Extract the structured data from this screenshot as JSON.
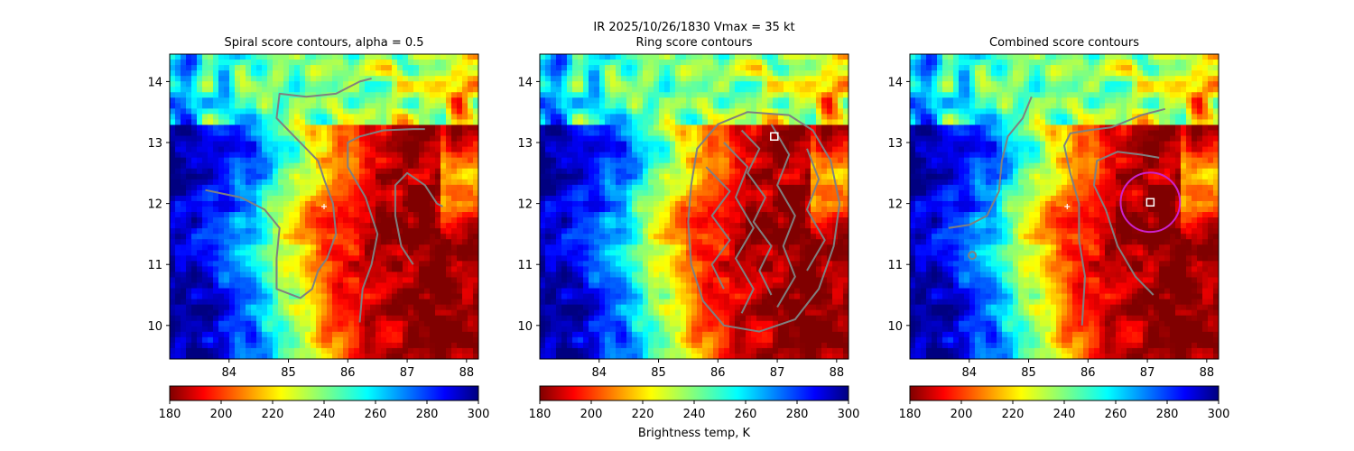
{
  "suptitle": {
    "line1": "IR  2025/10/26/1830    Vmax = 35 kt",
    "line2": "Ring score contours"
  },
  "colorbar_label": "Brightness temp, K",
  "panels": [
    {
      "title": "Spiral score contours, alpha =  0.5"
    },
    {
      "title": ""
    },
    {
      "title": "Combined score contours"
    }
  ],
  "chart_data": {
    "type": "heatmap",
    "colormap": "jet",
    "x": {
      "ticks": [
        84,
        85,
        86,
        87,
        88
      ],
      "range": [
        83.0,
        88.2
      ]
    },
    "y": {
      "ticks": [
        10,
        11,
        12,
        13,
        14
      ],
      "range": [
        9.45,
        14.45
      ]
    },
    "colorbar": {
      "ticks": [
        180,
        200,
        220,
        240,
        260,
        280,
        300
      ],
      "range": [
        180,
        300
      ],
      "label": "Brightness temp, K"
    },
    "contour_color": "#808080",
    "panels": [
      {
        "name": "Spiral score contours, alpha =  0.5",
        "contours": [
          [
            [
              83.6,
              12.22
            ],
            [
              84.2,
              12.1
            ],
            [
              84.6,
              11.9
            ],
            [
              84.85,
              11.6
            ],
            [
              84.8,
              11.1
            ],
            [
              84.8,
              10.6
            ],
            [
              85.2,
              10.45
            ],
            [
              85.4,
              10.6
            ],
            [
              85.5,
              10.9
            ],
            [
              85.65,
              11.1
            ],
            [
              85.8,
              11.5
            ],
            [
              85.75,
              12.0
            ],
            [
              85.6,
              12.4
            ],
            [
              85.5,
              12.7
            ],
            [
              85.3,
              12.9
            ],
            [
              85.1,
              13.1
            ],
            [
              84.8,
              13.4
            ],
            [
              84.85,
              13.8
            ],
            [
              85.3,
              13.75
            ],
            [
              85.8,
              13.8
            ],
            [
              86.2,
              14.0
            ],
            [
              86.4,
              14.05
            ]
          ],
          [
            [
              86.2,
              10.05
            ],
            [
              86.25,
              10.6
            ],
            [
              86.4,
              11.0
            ],
            [
              86.5,
              11.5
            ],
            [
              86.3,
              12.1
            ],
            [
              86.0,
              12.6
            ],
            [
              86.0,
              13.0
            ],
            [
              86.2,
              13.1
            ],
            [
              86.6,
              13.2
            ],
            [
              87.1,
              13.22
            ],
            [
              87.3,
              13.22
            ]
          ],
          [
            [
              87.1,
              11.0
            ],
            [
              86.9,
              11.3
            ],
            [
              86.8,
              11.8
            ],
            [
              86.8,
              12.3
            ],
            [
              87.0,
              12.5
            ],
            [
              87.3,
              12.3
            ],
            [
              87.5,
              12.0
            ],
            [
              87.6,
              11.95
            ]
          ]
        ],
        "markers": [
          {
            "x": 85.6,
            "y": 11.95,
            "symbol": "plus"
          }
        ]
      },
      {
        "name": "Ring score contours",
        "contours": [
          [
            [
              87.2,
              13.45
            ],
            [
              87.6,
              13.2
            ],
            [
              87.9,
              12.7
            ],
            [
              88.05,
              12.0
            ],
            [
              87.95,
              11.3
            ],
            [
              87.7,
              10.6
            ],
            [
              87.3,
              10.1
            ],
            [
              86.7,
              9.9
            ],
            [
              86.1,
              10.0
            ],
            [
              85.75,
              10.4
            ],
            [
              85.55,
              11.0
            ],
            [
              85.5,
              11.7
            ],
            [
              85.55,
              12.3
            ],
            [
              85.65,
              12.9
            ],
            [
              86.0,
              13.3
            ],
            [
              86.5,
              13.5
            ],
            [
              87.2,
              13.45
            ]
          ],
          [
            [
              86.1,
              13.0
            ],
            [
              86.5,
              12.6
            ],
            [
              86.3,
              12.1
            ],
            [
              86.6,
              11.6
            ],
            [
              86.3,
              11.1
            ],
            [
              86.6,
              10.6
            ],
            [
              86.4,
              10.2
            ]
          ],
          [
            [
              86.9,
              13.3
            ],
            [
              87.2,
              12.8
            ],
            [
              87.0,
              12.3
            ],
            [
              87.3,
              11.8
            ],
            [
              87.1,
              11.3
            ],
            [
              87.3,
              10.8
            ],
            [
              87.0,
              10.3
            ]
          ],
          [
            [
              85.8,
              12.6
            ],
            [
              86.2,
              12.2
            ],
            [
              85.9,
              11.8
            ],
            [
              86.2,
              11.4
            ],
            [
              85.9,
              11.0
            ],
            [
              86.1,
              10.6
            ]
          ],
          [
            [
              87.5,
              12.9
            ],
            [
              87.7,
              12.4
            ],
            [
              87.5,
              11.9
            ],
            [
              87.8,
              11.4
            ],
            [
              87.5,
              10.9
            ]
          ],
          [
            [
              86.4,
              13.2
            ],
            [
              86.7,
              12.9
            ],
            [
              86.5,
              12.5
            ],
            [
              86.8,
              12.1
            ],
            [
              86.6,
              11.7
            ],
            [
              86.9,
              11.3
            ],
            [
              86.7,
              10.9
            ],
            [
              86.9,
              10.5
            ]
          ]
        ],
        "markers": [
          {
            "x": 86.95,
            "y": 13.1,
            "symbol": "square"
          }
        ]
      },
      {
        "name": "Combined score contours",
        "contours": [
          [
            [
              83.65,
              11.6
            ],
            [
              84.0,
              11.65
            ],
            [
              84.3,
              11.8
            ],
            [
              84.5,
              12.2
            ],
            [
              84.55,
              12.7
            ],
            [
              84.65,
              13.1
            ],
            [
              84.9,
              13.4
            ],
            [
              85.05,
              13.75
            ]
          ],
          [
            [
              85.9,
              10.0
            ],
            [
              85.95,
              10.8
            ],
            [
              85.85,
              11.4
            ],
            [
              85.85,
              12.0
            ],
            [
              85.7,
              12.5
            ],
            [
              85.6,
              12.95
            ],
            [
              85.7,
              13.15
            ],
            [
              86.0,
              13.2
            ],
            [
              86.4,
              13.25
            ],
            [
              86.9,
              13.45
            ],
            [
              87.3,
              13.55
            ]
          ],
          [
            [
              87.1,
              10.5
            ],
            [
              86.8,
              10.8
            ],
            [
              86.5,
              11.3
            ],
            [
              86.3,
              11.9
            ],
            [
              86.1,
              12.3
            ],
            [
              86.15,
              12.7
            ],
            [
              86.5,
              12.85
            ],
            [
              86.9,
              12.8
            ],
            [
              87.2,
              12.75
            ]
          ]
        ],
        "circle": {
          "cx": 87.05,
          "cy": 12.02,
          "r": 0.5,
          "color": "#cc22cc"
        },
        "small_ring": {
          "x": 84.05,
          "y": 11.15
        },
        "markers": [
          {
            "x": 85.65,
            "y": 11.95,
            "symbol": "plus"
          },
          {
            "x": 87.05,
            "y": 12.02,
            "symbol": "square"
          }
        ]
      }
    ]
  }
}
